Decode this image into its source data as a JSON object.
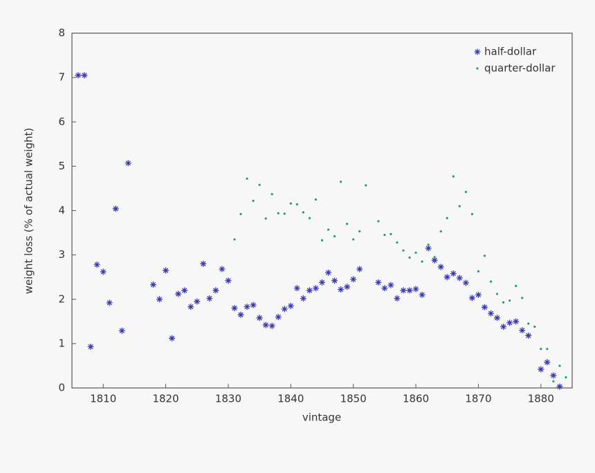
{
  "chart_data": {
    "type": "scatter",
    "xlabel": "vintage",
    "ylabel": "weight loss (% of actual weight)",
    "xlim": [
      1805,
      1885
    ],
    "ylim": [
      0,
      8
    ],
    "xticks": [
      1810,
      1820,
      1830,
      1840,
      1850,
      1860,
      1870,
      1880
    ],
    "yticks": [
      0,
      1,
      2,
      3,
      4,
      5,
      6,
      7,
      8
    ],
    "legend": "upper right",
    "series": [
      {
        "name": "half-dollar",
        "color": "#3a3ab0",
        "marker": "asterisk",
        "x": [
          1806,
          1807,
          1808,
          1809,
          1810,
          1811,
          1812,
          1813,
          1814,
          1818,
          1819,
          1820,
          1821,
          1822,
          1823,
          1824,
          1825,
          1826,
          1827,
          1828,
          1829,
          1830,
          1831,
          1832,
          1833,
          1834,
          1835,
          1836,
          1837,
          1838,
          1839,
          1840,
          1841,
          1842,
          1843,
          1844,
          1845,
          1846,
          1847,
          1848,
          1849,
          1850,
          1851,
          1854,
          1855,
          1856,
          1857,
          1858,
          1859,
          1860,
          1861,
          1862,
          1863,
          1864,
          1865,
          1866,
          1867,
          1868,
          1869,
          1870,
          1871,
          1872,
          1873,
          1874,
          1875,
          1876,
          1877,
          1878,
          1880,
          1881,
          1882,
          1883
        ],
        "values": [
          7.05,
          7.05,
          0.93,
          2.78,
          2.62,
          1.92,
          4.04,
          1.29,
          5.07,
          2.33,
          2.0,
          2.65,
          1.12,
          2.12,
          2.2,
          1.83,
          1.95,
          2.8,
          2.02,
          2.2,
          2.68,
          2.42,
          1.8,
          1.65,
          1.83,
          1.87,
          1.58,
          1.42,
          1.4,
          1.6,
          1.78,
          1.85,
          2.25,
          2.02,
          2.2,
          2.25,
          2.38,
          2.6,
          2.42,
          2.22,
          2.28,
          2.45,
          2.68,
          2.38,
          2.25,
          2.32,
          2.02,
          2.2,
          2.2,
          2.23,
          2.1,
          3.15,
          2.88,
          2.73,
          2.5,
          2.58,
          2.48,
          2.37,
          2.03,
          2.1,
          1.82,
          1.68,
          1.58,
          1.38,
          1.47,
          1.5,
          1.3,
          1.18,
          0.42,
          0.58,
          0.28,
          0.03
        ]
      },
      {
        "name": "quarter-dollar",
        "color": "#1fa060",
        "marker": "dot",
        "x": [
          1831,
          1832,
          1833,
          1834,
          1835,
          1836,
          1837,
          1838,
          1839,
          1840,
          1841,
          1842,
          1843,
          1844,
          1845,
          1846,
          1847,
          1848,
          1849,
          1850,
          1851,
          1852,
          1854,
          1855,
          1856,
          1857,
          1858,
          1859,
          1860,
          1861,
          1862,
          1863,
          1864,
          1865,
          1866,
          1867,
          1868,
          1869,
          1870,
          1871,
          1872,
          1873,
          1874,
          1875,
          1876,
          1877,
          1878,
          1879,
          1880,
          1881,
          1882,
          1883,
          1884
        ],
        "values": [
          3.35,
          3.92,
          4.72,
          4.22,
          4.58,
          3.82,
          4.37,
          3.94,
          3.93,
          4.16,
          4.14,
          3.96,
          3.83,
          4.25,
          3.33,
          3.57,
          3.42,
          4.65,
          3.7,
          3.35,
          3.53,
          4.57,
          3.76,
          3.45,
          3.47,
          3.28,
          3.1,
          2.94,
          3.05,
          2.85,
          3.23,
          2.95,
          3.53,
          3.83,
          4.77,
          4.1,
          4.42,
          3.92,
          2.63,
          2.98,
          2.4,
          2.12,
          1.93,
          1.97,
          2.3,
          2.03,
          1.45,
          1.38,
          0.88,
          0.88,
          0.15,
          0.5,
          0.24
        ]
      }
    ]
  }
}
